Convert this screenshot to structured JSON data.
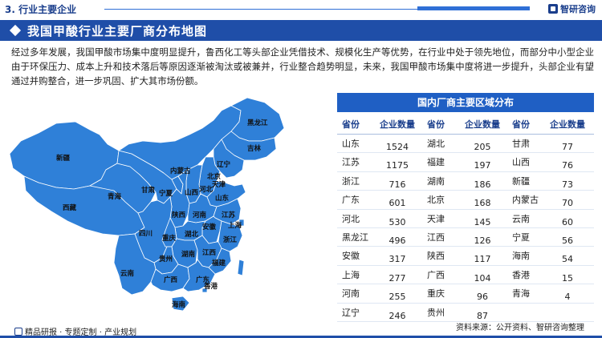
{
  "header": {
    "section_title": "3. 行业主要企业",
    "brand": "智研咨询"
  },
  "banner": {
    "title": "我国甲酸行业主要厂商分布地图"
  },
  "intro": {
    "text": "经过多年发展，我国甲酸市场集中度明显提升，鲁西化工等头部企业凭借技术、规模化生产等优势，在行业中处于领先地位，而部分中小型企业由于环保压力、成本上升和技术落后等原因逐渐被淘汰或被兼并，行业整合趋势明显，未来，我国甲酸市场集中度将进一步提升，头部企业有望通过并购整合，进一步巩固、扩大其市场份额。"
  },
  "map": {
    "fill_color": "#2f80d8",
    "border_color": "#ffffff",
    "labels": [
      "黑龙江",
      "吉林",
      "辽宁",
      "内蒙古",
      "新疆",
      "北京",
      "天津",
      "河北",
      "山西",
      "宁夏",
      "甘肃",
      "青海",
      "西藏",
      "陕西",
      "河南",
      "山东",
      "江苏",
      "安徽",
      "上海",
      "湖北",
      "四川",
      "重庆",
      "浙江",
      "湖南",
      "江西",
      "贵州",
      "福建",
      "云南",
      "广西",
      "广东",
      "香港",
      "海南"
    ]
  },
  "table": {
    "title": "国内厂商主要区域分布",
    "headers": [
      "省份",
      "企业数量",
      "省份",
      "企业数量",
      "省份",
      "企业数量"
    ],
    "rows": [
      [
        "山东",
        "1524",
        "湖北",
        "205",
        "甘肃",
        "77"
      ],
      [
        "江苏",
        "1175",
        "福建",
        "197",
        "山西",
        "76"
      ],
      [
        "浙江",
        "716",
        "湖南",
        "186",
        "新疆",
        "73"
      ],
      [
        "广东",
        "601",
        "北京",
        "168",
        "内蒙古",
        "70"
      ],
      [
        "河北",
        "530",
        "天津",
        "145",
        "云南",
        "60"
      ],
      [
        "黑龙江",
        "496",
        "江西",
        "126",
        "宁夏",
        "56"
      ],
      [
        "安徽",
        "317",
        "陕西",
        "117",
        "海南",
        "54"
      ],
      [
        "上海",
        "277",
        "广西",
        "104",
        "香港",
        "15"
      ],
      [
        "河南",
        "255",
        "重庆",
        "96",
        "青海",
        "4"
      ],
      [
        "辽宁",
        "246",
        "贵州",
        "87",
        "",
        ""
      ]
    ]
  },
  "footer": {
    "left": "精品研报 · 专题定制 · 产业规划",
    "source": "资料来源：公开资料、智研咨询整理"
  }
}
